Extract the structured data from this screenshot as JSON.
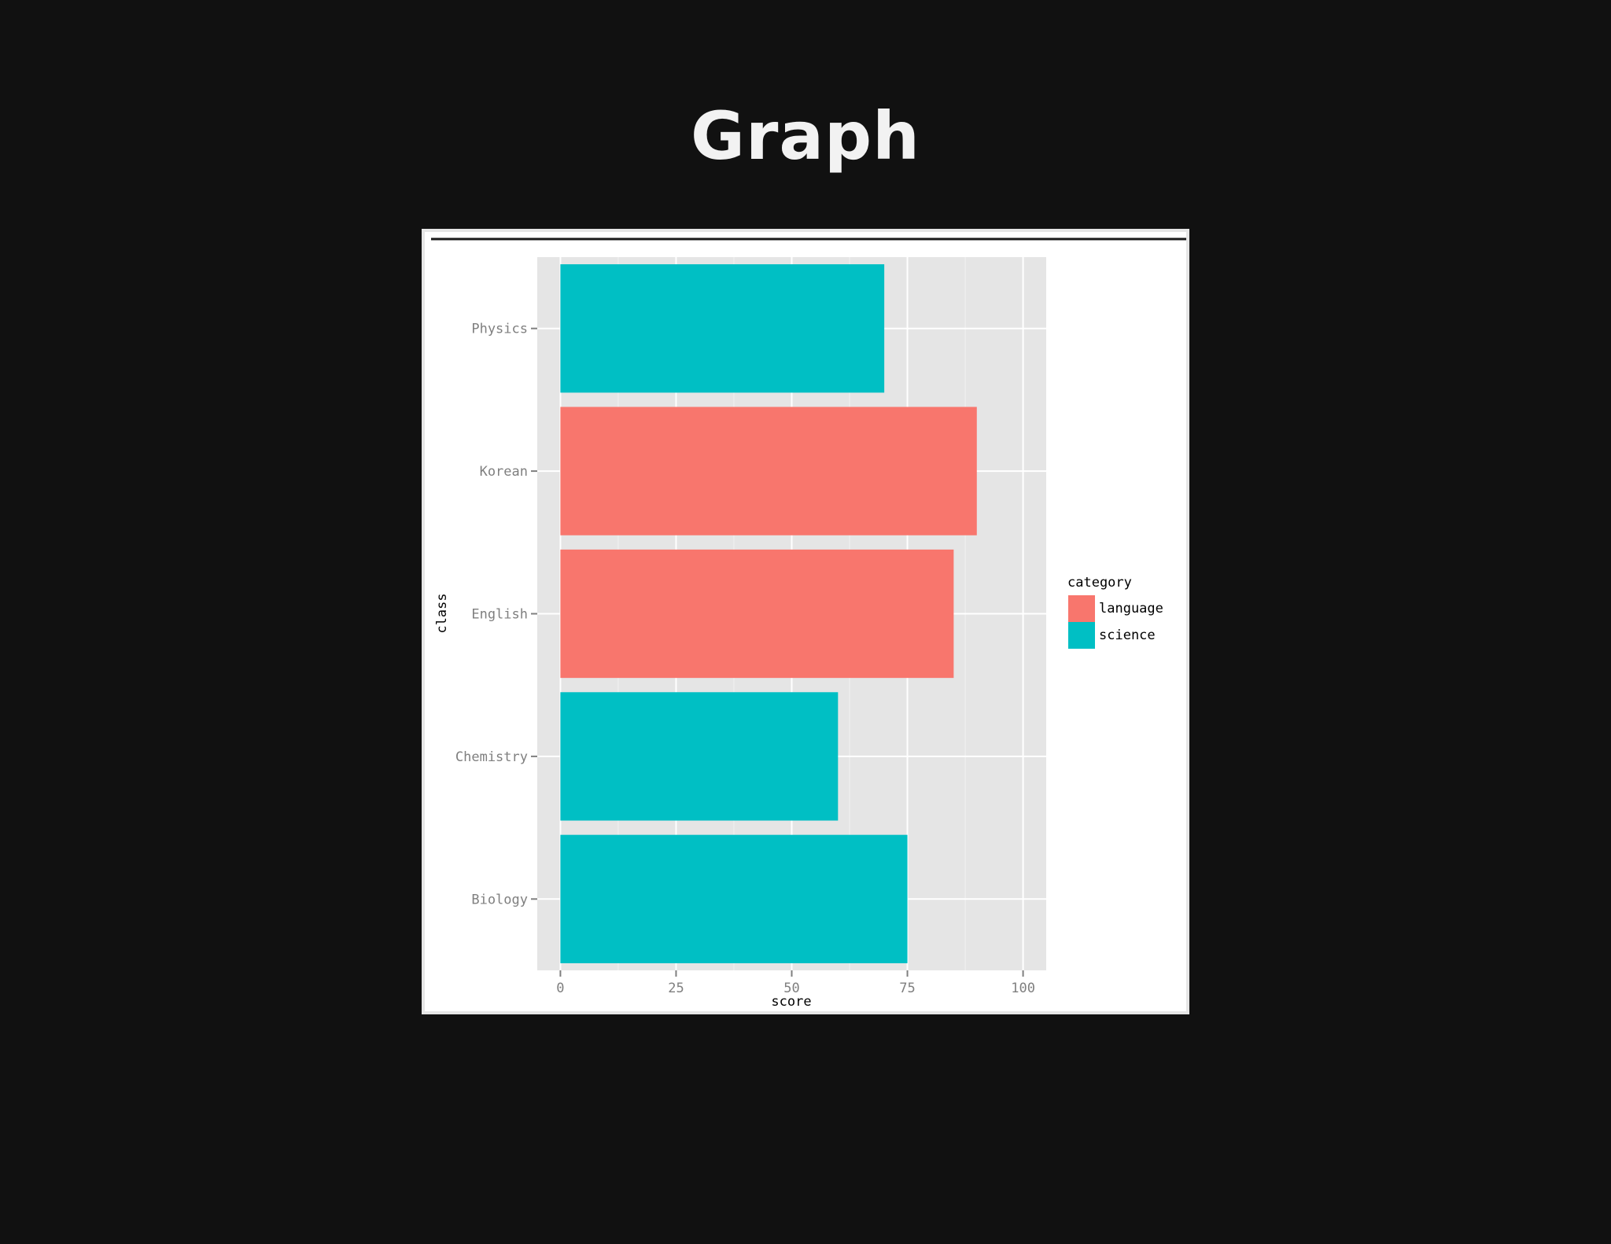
{
  "slide": {
    "title": "Graph"
  },
  "chart_data": {
    "type": "bar",
    "orientation": "horizontal",
    "categories": [
      "Physics",
      "Korean",
      "English",
      "Chemistry",
      "Biology"
    ],
    "values": [
      70,
      90,
      85,
      60,
      75
    ],
    "groups": [
      "science",
      "language",
      "language",
      "science",
      "science"
    ],
    "xlabel": "score",
    "ylabel": "class",
    "xlim": [
      -5,
      105
    ],
    "xticks": [
      0,
      25,
      50,
      75,
      100
    ],
    "grid": true,
    "legend": {
      "title": "category",
      "placement": "right",
      "items": [
        {
          "name": "language",
          "color": "#F8766D"
        },
        {
          "name": "science",
          "color": "#00BFC4"
        }
      ]
    },
    "colors": {
      "panel_bg": "#E5E5E5",
      "grid_major": "#FFFFFF",
      "grid_minor": "#F2F2F2",
      "tick": "#7F7F7F"
    }
  }
}
